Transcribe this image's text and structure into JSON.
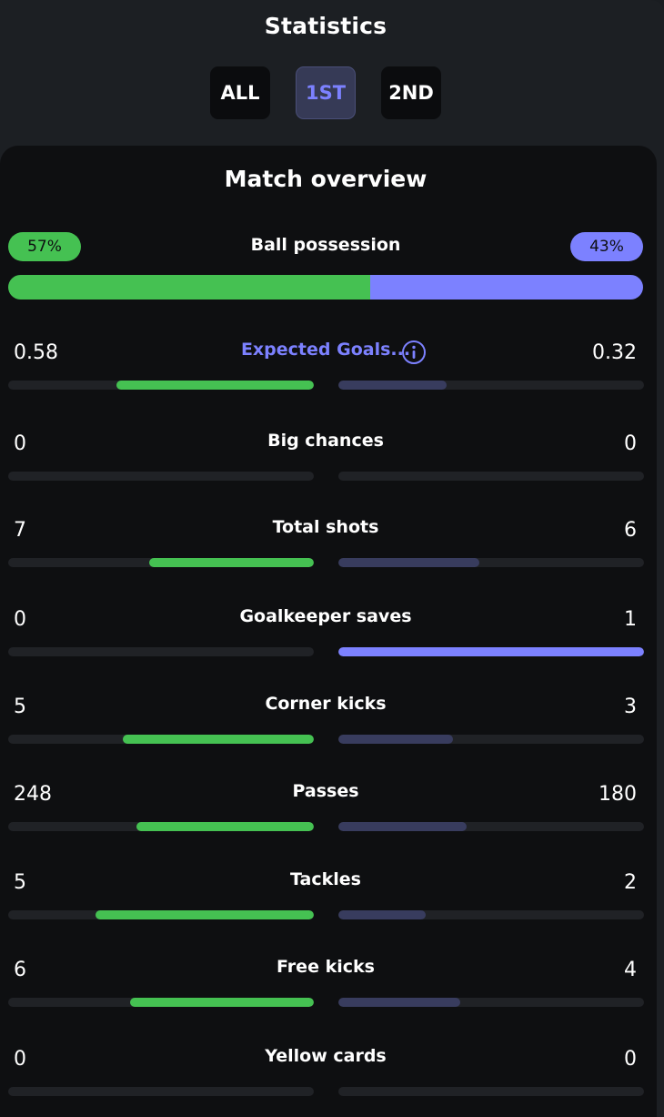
{
  "header": {
    "title": "Statistics",
    "tabs": [
      {
        "label": "ALL",
        "active": false
      },
      {
        "label": "1ST",
        "active": true
      },
      {
        "label": "2ND",
        "active": false
      }
    ]
  },
  "overview": {
    "title": "Match overview",
    "possession": {
      "label": "Ball possession",
      "home_label": "57%",
      "away_label": "43%",
      "home": 57,
      "away": 43
    },
    "stats": [
      {
        "label": "Expected Goals...",
        "home_label": "0.58",
        "away_label": "0.32",
        "home": 0.58,
        "away": 0.32,
        "is_link": true,
        "info_icon": "info-circle-icon"
      },
      {
        "label": "Big chances",
        "home_label": "0",
        "away_label": "0",
        "home": 0,
        "away": 0
      },
      {
        "label": "Total shots",
        "home_label": "7",
        "away_label": "6",
        "home": 7,
        "away": 6
      },
      {
        "label": "Goalkeeper saves",
        "home_label": "0",
        "away_label": "1",
        "home": 0,
        "away": 1
      },
      {
        "label": "Corner kicks",
        "home_label": "5",
        "away_label": "3",
        "home": 5,
        "away": 3
      },
      {
        "label": "Passes",
        "home_label": "248",
        "away_label": "180",
        "home": 248,
        "away": 180
      },
      {
        "label": "Tackles",
        "home_label": "5",
        "away_label": "2",
        "home": 5,
        "away": 2
      },
      {
        "label": "Free kicks",
        "home_label": "6",
        "away_label": "4",
        "home": 6,
        "away": 4
      },
      {
        "label": "Yellow cards",
        "home_label": "0",
        "away_label": "0",
        "home": 0,
        "away": 0
      }
    ]
  },
  "colors": {
    "home": "#45c152",
    "away": "#7c81ff",
    "away_muted": "#383c5e",
    "track": "#202226"
  }
}
